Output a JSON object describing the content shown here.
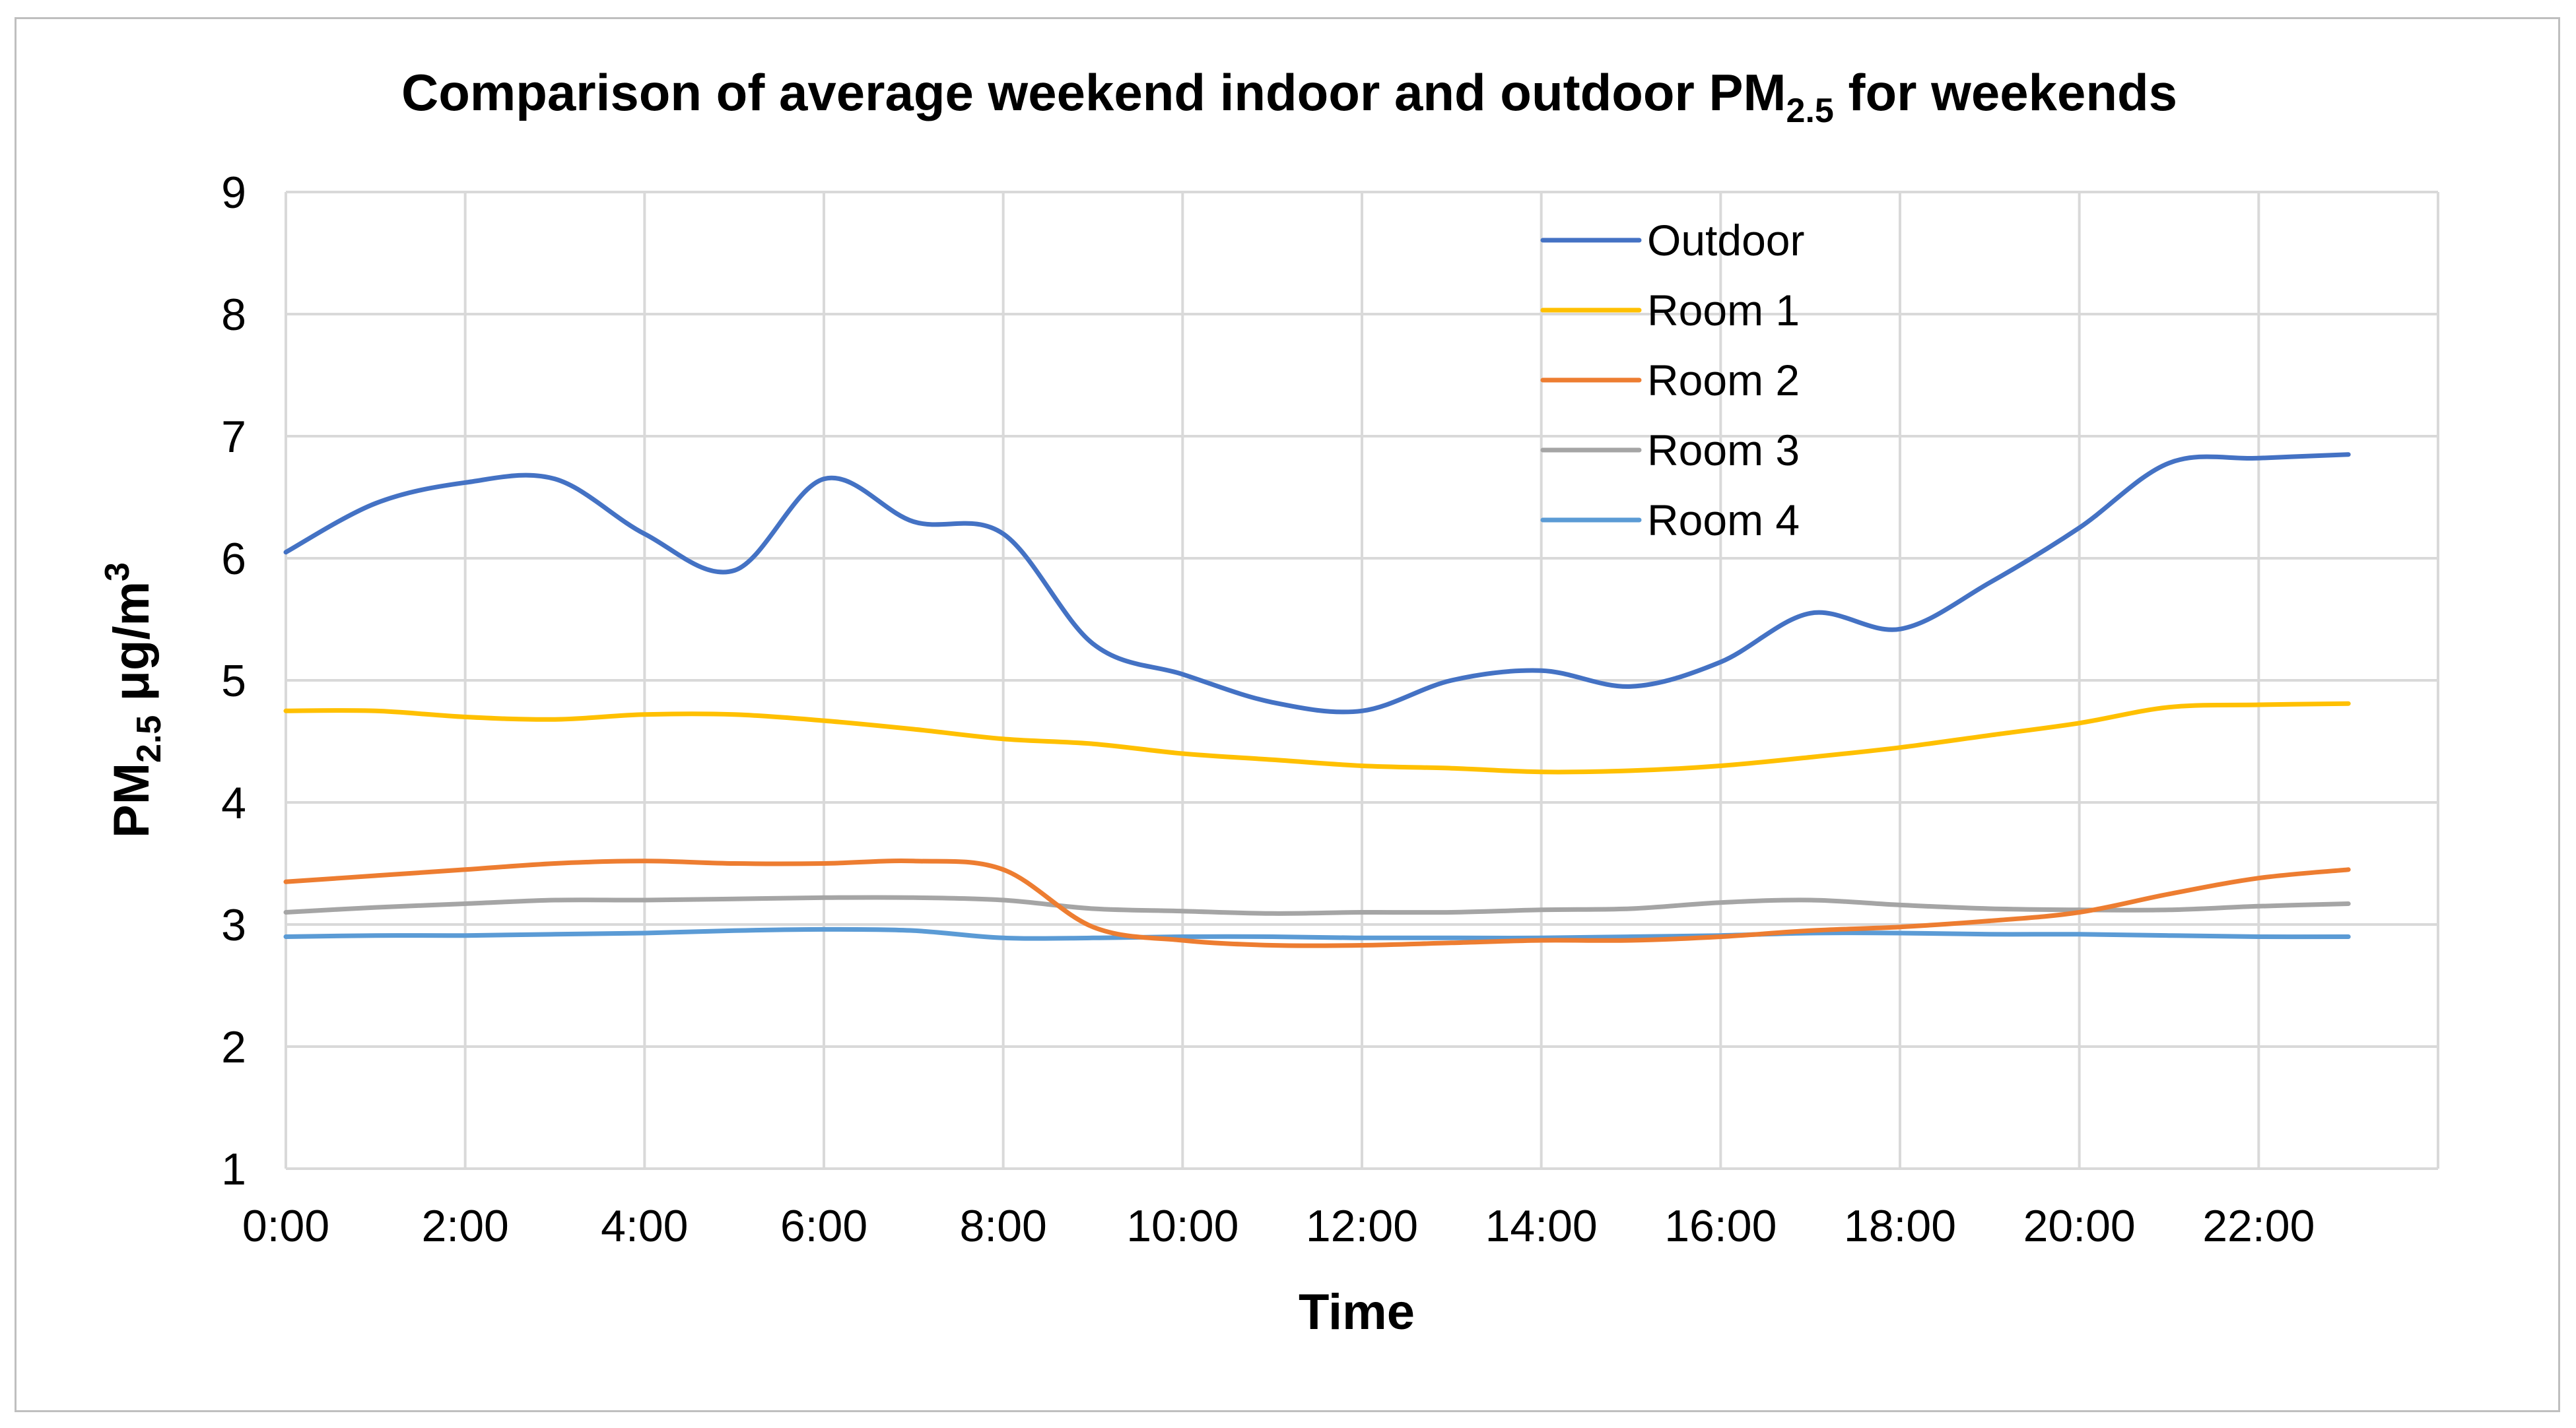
{
  "chart_data": {
    "type": "line",
    "title": "Comparison of average weekend indoor and outdoor PM",
    "title_subscript": "2.5",
    "title_suffix": " for weekends",
    "xlabel": "Time",
    "ylabel": "PM",
    "ylabel_subscript": "2.5",
    "ylabel_unit": " μg/m",
    "ylabel_superscript": "3",
    "ylim": [
      1,
      9
    ],
    "yticks": [
      "1",
      "2",
      "3",
      "4",
      "5",
      "6",
      "7",
      "8",
      "9"
    ],
    "x": [
      0,
      1,
      2,
      3,
      4,
      5,
      6,
      7,
      8,
      9,
      10,
      11,
      12,
      13,
      14,
      15,
      16,
      17,
      18,
      19,
      20,
      21,
      22,
      23
    ],
    "xticks": [
      "0:00",
      "2:00",
      "4:00",
      "6:00",
      "8:00",
      "10:00",
      "12:00",
      "14:00",
      "16:00",
      "18:00",
      "20:00",
      "22:00"
    ],
    "grid": true,
    "legend_position": "top-center",
    "series": [
      {
        "name": "Outdoor",
        "color": "#4472c4",
        "values": [
          6.05,
          6.45,
          6.62,
          6.65,
          6.2,
          5.9,
          6.65,
          6.3,
          6.2,
          5.3,
          5.05,
          4.82,
          4.75,
          5.0,
          5.08,
          4.95,
          5.15,
          5.55,
          5.42,
          5.8,
          6.25,
          6.78,
          6.82,
          6.85
        ]
      },
      {
        "name": "Room 1",
        "color": "#ffc000",
        "values": [
          4.75,
          4.75,
          4.7,
          4.68,
          4.72,
          4.72,
          4.67,
          4.6,
          4.52,
          4.48,
          4.4,
          4.35,
          4.3,
          4.28,
          4.25,
          4.26,
          4.3,
          4.37,
          4.45,
          4.55,
          4.65,
          4.78,
          4.8,
          4.81
        ]
      },
      {
        "name": "Room 2",
        "color": "#ed7d31",
        "values": [
          3.35,
          3.4,
          3.45,
          3.5,
          3.52,
          3.5,
          3.5,
          3.52,
          3.45,
          2.98,
          2.87,
          2.83,
          2.83,
          2.85,
          2.87,
          2.87,
          2.9,
          2.95,
          2.98,
          3.03,
          3.1,
          3.25,
          3.38,
          3.45
        ]
      },
      {
        "name": "Room 3",
        "color": "#a5a5a5",
        "values": [
          3.1,
          3.14,
          3.17,
          3.2,
          3.2,
          3.21,
          3.22,
          3.22,
          3.2,
          3.13,
          3.11,
          3.09,
          3.1,
          3.1,
          3.12,
          3.13,
          3.18,
          3.2,
          3.16,
          3.13,
          3.12,
          3.12,
          3.15,
          3.17
        ]
      },
      {
        "name": "Room 4",
        "color": "#5b9bd5",
        "values": [
          2.9,
          2.91,
          2.91,
          2.92,
          2.93,
          2.95,
          2.96,
          2.95,
          2.89,
          2.89,
          2.9,
          2.9,
          2.89,
          2.89,
          2.89,
          2.9,
          2.91,
          2.93,
          2.93,
          2.92,
          2.92,
          2.91,
          2.9,
          2.9
        ]
      }
    ]
  }
}
